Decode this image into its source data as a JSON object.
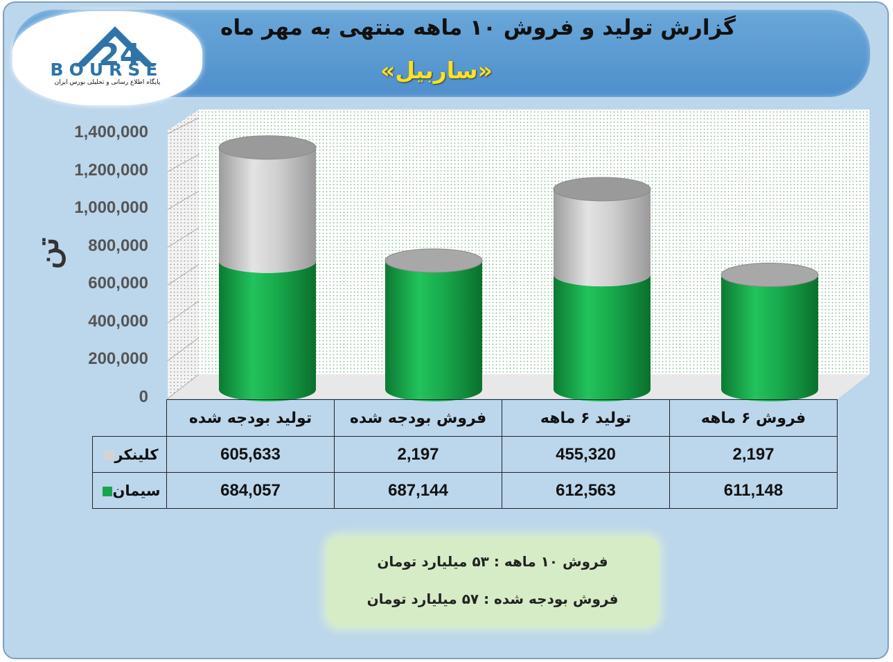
{
  "header": {
    "title": "گزارش تولید و فروش ۱۰ ماهه منتهی به مهر ماه",
    "subtitle": "«ساربیل»"
  },
  "logo": {
    "word": "BOURSE",
    "caption": "پایگاه اطلاع رسانی و تحلیلی بورس ایران"
  },
  "colors": {
    "cement": "#16a64a",
    "clinker": "#c9c9c9",
    "header": "#5b9bd5",
    "subtitle": "#ffe21b"
  },
  "chart_data": {
    "type": "bar",
    "stacked": true,
    "style": "3d-cylinder",
    "ylabel": "تن",
    "ylim": [
      0,
      1400000
    ],
    "yticks": [
      "1,400,000",
      "1,200,000",
      "1,000,000",
      "800,000",
      "600,000",
      "400,000",
      "200,000",
      "0"
    ],
    "grid": true,
    "categories": [
      "تولید بودجه شده",
      "فروش بودجه شده",
      "تولید ۶ ماهه",
      "فروش ۶ ماهه"
    ],
    "series": [
      {
        "name": "سیمان",
        "values": [
          684057,
          687144,
          612563,
          611148
        ],
        "labels": [
          "684,057",
          "687,144",
          "612,563",
          "611,148"
        ]
      },
      {
        "name": "کلینکر",
        "values": [
          605633,
          2197,
          455320,
          2197
        ],
        "labels": [
          "605,633",
          "2,197",
          "455,320",
          "2,197"
        ]
      }
    ]
  },
  "notes": [
    "فروش ۱۰ ماهه : ۵۳ میلیارد تومان",
    "فروش بودجه شده : ۵۷ میلیارد تومان"
  ]
}
